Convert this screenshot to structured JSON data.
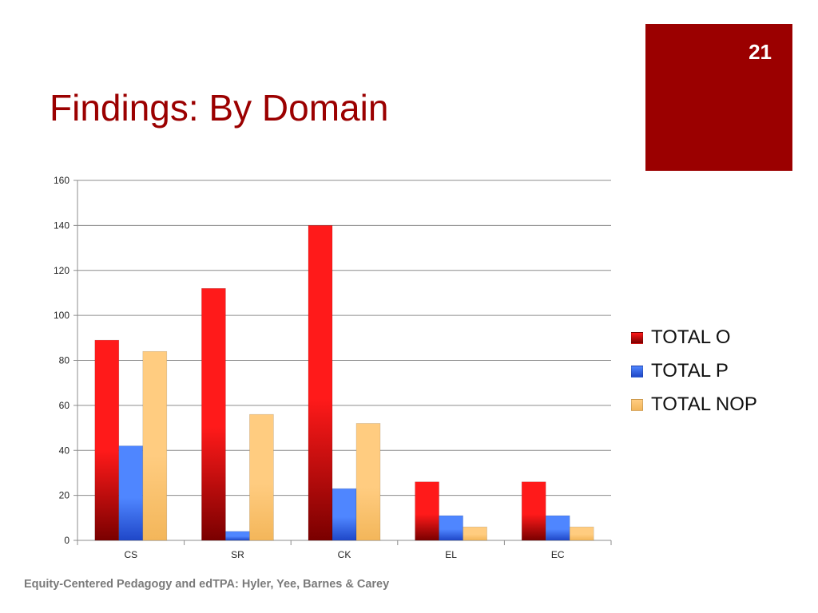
{
  "slide": {
    "number": "21",
    "title": "Findings: By Domain",
    "footer": "Equity-Centered Pedagogy and edTPA: Hyler, Yee, Barnes & Carey",
    "accent_color": "#9b0000"
  },
  "chart_data": {
    "type": "bar",
    "title": "",
    "xlabel": "",
    "ylabel": "",
    "categories": [
      "CS",
      "SR",
      "CK",
      "EL",
      "EC"
    ],
    "series": [
      {
        "name": "TOTAL O",
        "values": [
          89,
          112,
          140,
          26,
          26
        ],
        "color": "#ff1a1a"
      },
      {
        "name": "TOTAL P",
        "values": [
          42,
          4,
          23,
          11,
          11
        ],
        "color": "#4f86ff"
      },
      {
        "name": "TOTAL NOP",
        "values": [
          84,
          56,
          52,
          6,
          6
        ],
        "color": "#ffcc80"
      }
    ],
    "ylim": [
      0,
      160
    ],
    "yticks": [
      0,
      20,
      40,
      60,
      80,
      100,
      120,
      140,
      160
    ],
    "grid": true,
    "legend_position": "right"
  }
}
